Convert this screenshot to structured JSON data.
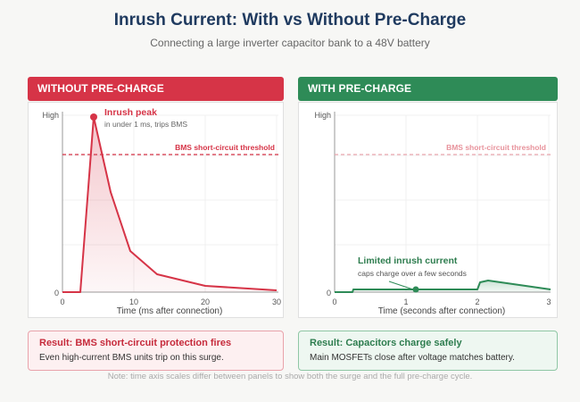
{
  "header": {
    "title": "Inrush Current: With vs Without Pre-Charge",
    "subtitle": "Connecting a large inverter capacitor bank to a 48V battery"
  },
  "panels": {
    "left": {
      "heading": "WITHOUT PRE-CHARGE",
      "threshold_label": "BMS short-circuit threshold",
      "peak_label": "Inrush peak",
      "peak_note": "in under 1 ms, trips BMS",
      "y_high": "High",
      "y_zero": "0",
      "x_ticks": [
        "0",
        "10",
        "20",
        "30"
      ],
      "xlabel": "Time (ms after connection)"
    },
    "right": {
      "heading": "WITH PRE-CHARGE",
      "threshold_label": "BMS short-circuit threshold",
      "limited_label": "Limited inrush current",
      "limited_note": "caps charge over a few seconds",
      "y_high": "High",
      "y_zero": "0",
      "x_ticks": [
        "0",
        "1",
        "2",
        "3"
      ],
      "xlabel": "Time (seconds after connection)"
    }
  },
  "results": {
    "left": {
      "title": "Result: BMS short-circuit protection fires",
      "body": "Even high-current BMS units trip on this surge."
    },
    "right": {
      "title": "Result: Capacitors charge safely",
      "body": "Main MOSFETs close after voltage matches battery."
    }
  },
  "footnote": "Note: time axis scales differ between panels to show both the surge and the full pre-charge cycle.",
  "colors": {
    "red": "#d63447",
    "green": "#2e8b57",
    "navy": "#1f3a5f"
  }
}
